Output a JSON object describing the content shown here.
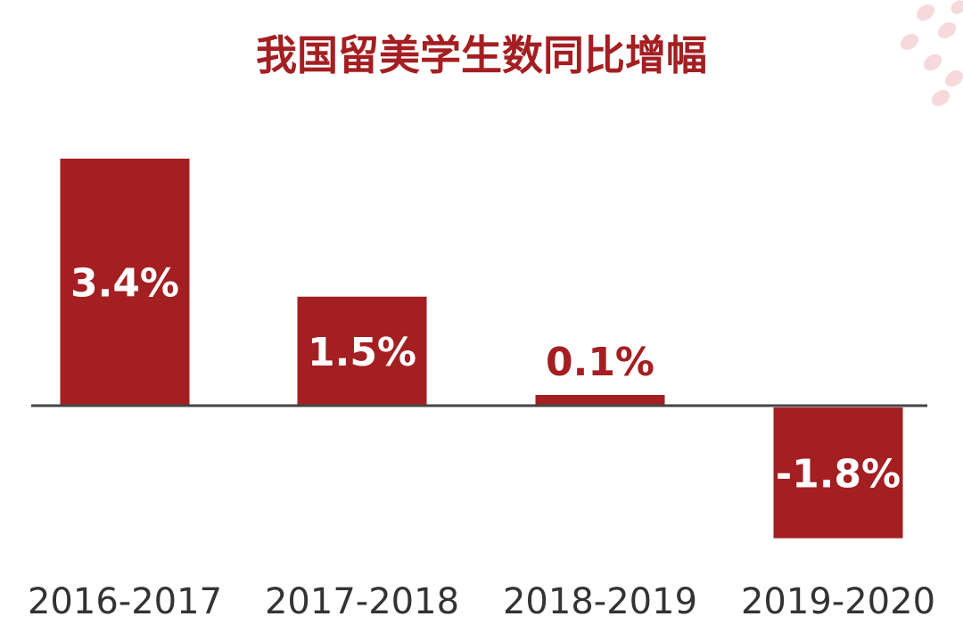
{
  "colors": {
    "bar": "#a41f22",
    "title": "#a41f22",
    "bar_label_inside": "#ffffff",
    "bar_label_above": "#a41f22",
    "axis": "#444444",
    "category_label": "#333333",
    "decoration": "#f6dadb"
  },
  "chart_data": {
    "type": "bar",
    "title": "我国留美学生数同比增幅",
    "xlabel": "",
    "ylabel": "",
    "categories": [
      "2016-2017",
      "2017-2018",
      "2018-2019",
      "2019-2020"
    ],
    "values": [
      3.4,
      1.5,
      0.1,
      -1.8
    ],
    "data_labels": [
      "3.4%",
      "1.5%",
      "0.1%",
      "-1.8%"
    ],
    "ylim": [
      -1.8,
      3.4
    ],
    "grid": false,
    "legend": "none"
  }
}
